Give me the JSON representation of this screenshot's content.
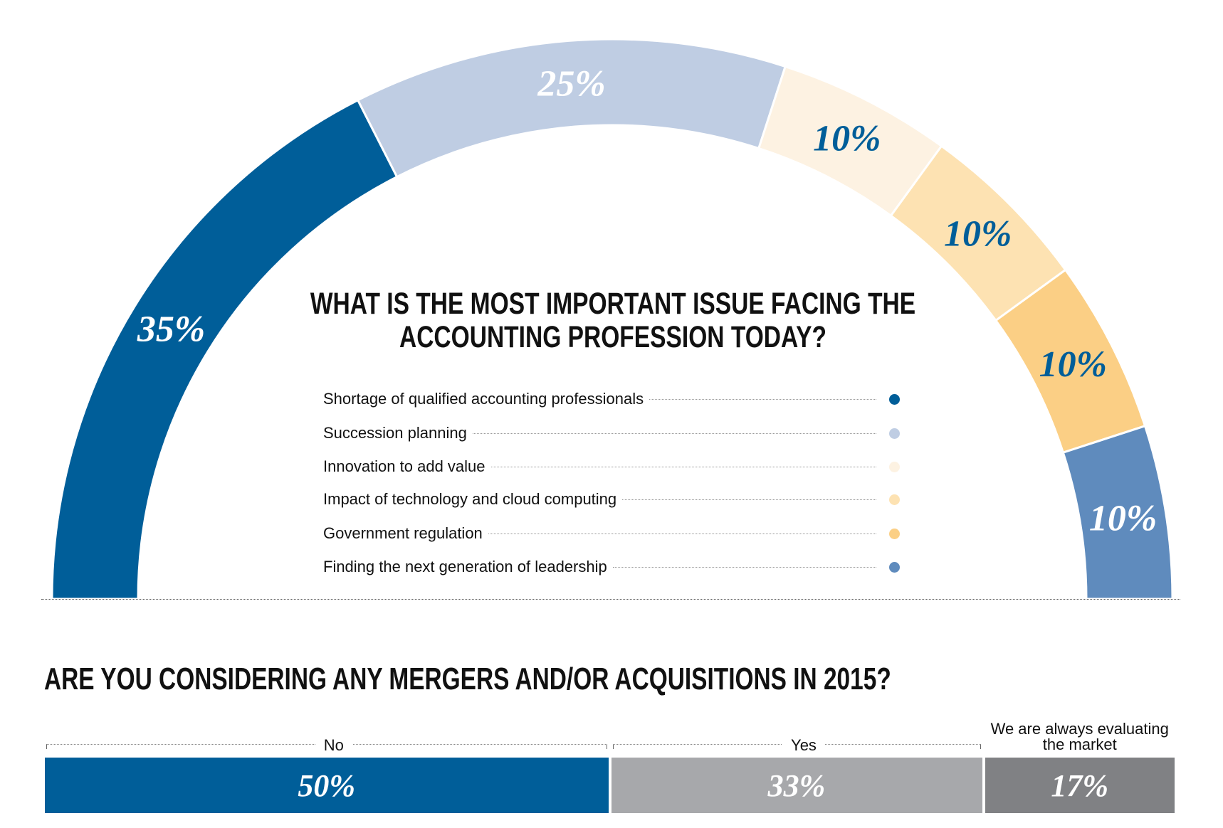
{
  "chart_data": [
    {
      "type": "pie",
      "variant": "semicircle-donut",
      "title": "What is the most important issue facing the accounting profession today?",
      "categories": [
        "Shortage of qualified accounting professionals",
        "Succession planning",
        "Innovation to add value",
        "Impact of technology and cloud computing",
        "Government regulation",
        "Finding the next generation of leadership"
      ],
      "values": [
        35,
        25,
        10,
        10,
        10,
        10
      ],
      "labels": [
        "35%",
        "25%",
        "10%",
        "10%",
        "10%",
        "10%"
      ],
      "colors": [
        "#005e99",
        "#bfcde3",
        "#fdf2e2",
        "#fde2b2",
        "#fbcf85",
        "#5f8bbd"
      ],
      "label_colors": [
        "#ffffff",
        "#ffffff",
        "#005e99",
        "#005e99",
        "#005e99",
        "#ffffff"
      ],
      "legend": "center"
    },
    {
      "type": "bar",
      "variant": "stacked-horizontal",
      "title": "Are you considering any mergers and/or acquisitions in 2015?",
      "categories": [
        "No",
        "Yes",
        "We are always evaluating the market"
      ],
      "values": [
        50,
        33,
        17
      ],
      "labels": [
        "50%",
        "33%",
        "17%"
      ],
      "colors": [
        "#005e99",
        "#a7a8ab",
        "#808184"
      ]
    }
  ]
}
